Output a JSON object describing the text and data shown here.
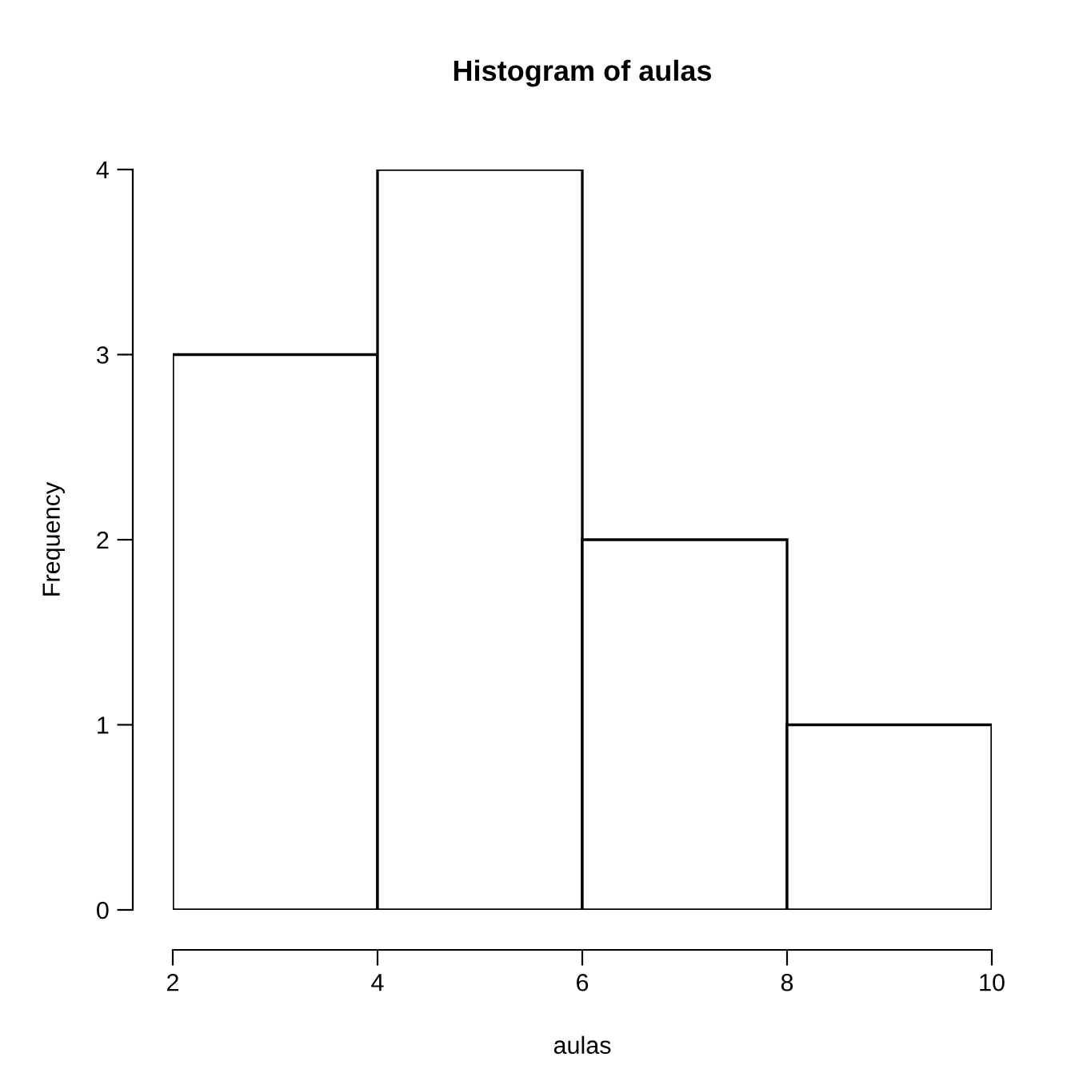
{
  "chart_data": {
    "type": "histogram",
    "title": "Histogram of aulas",
    "xlabel": "aulas",
    "ylabel": "Frequency",
    "bins": [
      2,
      4,
      6,
      8,
      10
    ],
    "values": [
      3,
      4,
      2,
      1
    ],
    "color": "#ffffff",
    "xlim": [
      2,
      10
    ],
    "ylim": [
      0,
      4
    ],
    "xticks": [
      2,
      4,
      6,
      8,
      10
    ],
    "yticks": [
      0,
      1,
      2,
      3,
      4
    ],
    "grid": false
  }
}
